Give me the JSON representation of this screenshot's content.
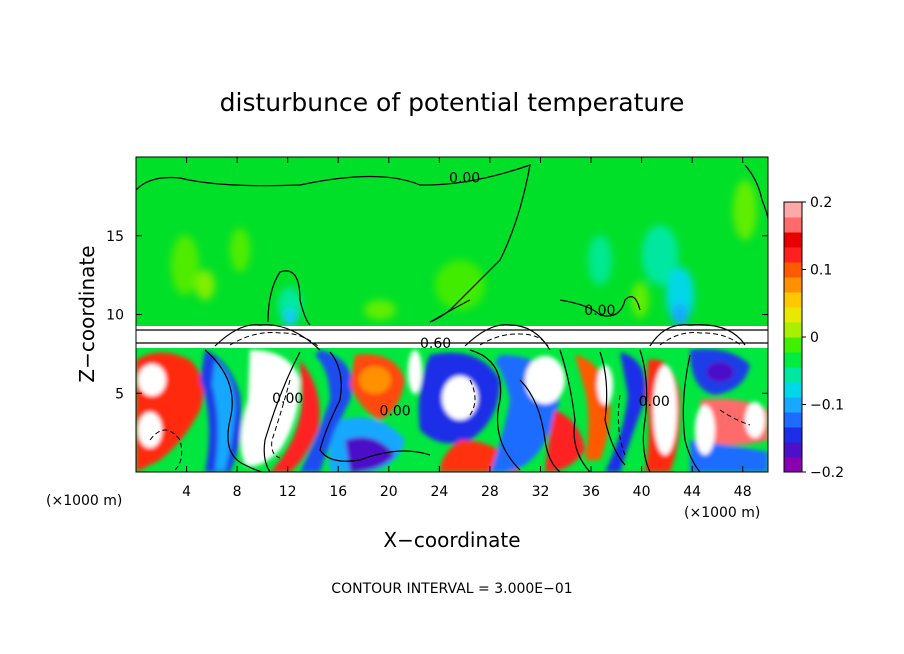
{
  "figure": {
    "title": "disturbunce of potential temperature",
    "xlabel": "X−coordinate",
    "ylabel": "Z−coordinate",
    "x_unit_left": "(×1000 m)",
    "x_unit_right": "(×1000 m)",
    "contour_interval": "CONTOUR INTERVAL = 3.000E−01"
  },
  "chart_data": {
    "type": "heatmap",
    "title": "disturbunce of potential temperature",
    "xlabel": "X−coordinate",
    "ylabel": "Z−coordinate",
    "x_unit": "(×1000 m)",
    "xlim": [
      0,
      50
    ],
    "ylim": [
      0,
      20
    ],
    "x_ticks": [
      4,
      8,
      12,
      16,
      20,
      24,
      28,
      32,
      36,
      40,
      44,
      48
    ],
    "y_ticks": [
      5,
      10,
      15
    ],
    "colorbar": {
      "range": [
        -0.2,
        0.2
      ],
      "ticks": [
        0.2,
        0.1,
        0,
        -0.1,
        -0.2
      ],
      "tick_labels": [
        "0.2",
        "0.1",
        "0",
        "−0.1",
        "−0.2"
      ],
      "colors": [
        "#8a00b0",
        "#4b10c8",
        "#1c2ee8",
        "#1e6cff",
        "#19a8ff",
        "#00d8e8",
        "#00e8a0",
        "#00ec40",
        "#40f000",
        "#a8f000",
        "#e8e800",
        "#ffc800",
        "#ff9000",
        "#ff5a00",
        "#ff2020",
        "#e80000",
        "#ff6a6a",
        "#ffa8a8"
      ]
    },
    "contour_labels": [
      {
        "text": "0.00",
        "x": 26,
        "z": 18.7
      },
      {
        "text": "0.00",
        "x": 36.7,
        "z": 10.3
      },
      {
        "text": "0.60",
        "x": 23.7,
        "z": 8.2
      },
      {
        "text": "0.00",
        "x": 12,
        "z": 4.7
      },
      {
        "text": "0.00",
        "x": 20.5,
        "z": 3.9
      },
      {
        "text": "0.00",
        "x": 41,
        "z": 4.5
      }
    ],
    "contour_interval": 0.3
  }
}
